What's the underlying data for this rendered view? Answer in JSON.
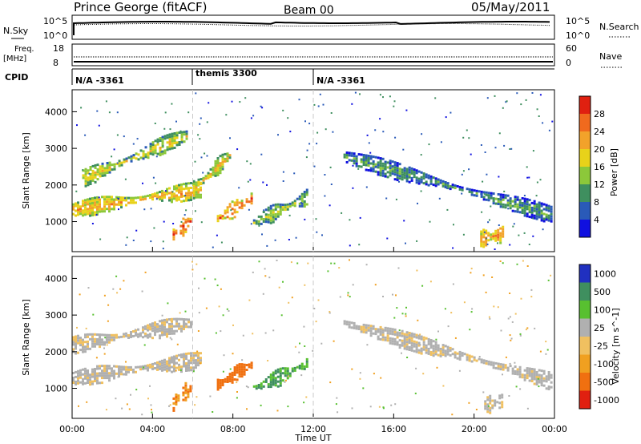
{
  "header": {
    "station": "Prince George (fitACF)",
    "beam": "Beam 00",
    "date": "05/May/2011"
  },
  "status_panel": {
    "nsky_label": "N.Sky",
    "nsearch_label": "N.Search",
    "count_ticks": [
      "10^5",
      "10^0"
    ],
    "freq_label_1": "Freq.",
    "freq_label_2": "[MHz]",
    "freq_ticks": [
      "18",
      "8"
    ],
    "nave_label": "Nave",
    "nave_ticks": [
      "60",
      "0"
    ],
    "cpid_label": "CPID",
    "cpid_segments": [
      {
        "label": "N/A -3361",
        "start_hour": 0,
        "end_hour": 6
      },
      {
        "label": "themis 3300",
        "start_hour": 6,
        "end_hour": 12
      },
      {
        "label": "N/A -3361",
        "start_hour": 12,
        "end_hour": 24
      }
    ]
  },
  "chart_data": [
    {
      "type": "heatmap",
      "title": "",
      "parameter": "Power",
      "xlabel": "",
      "ylabel": "Slant Range [km]",
      "xlim": [
        0,
        24
      ],
      "ylim": [
        180,
        4600
      ],
      "y_ticks": [
        "1000",
        "2000",
        "3000",
        "4000"
      ],
      "colorbar": {
        "label": "Power [dB]",
        "min": 0,
        "max": 32,
        "ticks": [
          "4",
          "8",
          "12",
          "16",
          "20",
          "24",
          "28"
        ],
        "colors": [
          "#1010e0",
          "#2a5ab8",
          "#3f8f5f",
          "#8cc83a",
          "#e8d21a",
          "#f2a22a",
          "#f06a1e",
          "#e02010"
        ]
      },
      "echo_bands": [
        {
          "start_hour": 0.0,
          "end_hour": 6.5,
          "range_start_km": 1350,
          "range_end_km": 1900,
          "power_db": 20
        },
        {
          "start_hour": 0.5,
          "end_hour": 5.8,
          "range_start_km": 2200,
          "range_end_km": 3400,
          "power_db": 16
        },
        {
          "start_hour": 6.0,
          "end_hour": 8.0,
          "range_start_km": 1900,
          "range_end_km": 2900,
          "power_db": 18
        },
        {
          "start_hour": 5.0,
          "end_hour": 6.0,
          "range_start_km": 650,
          "range_end_km": 1100,
          "power_db": 26
        },
        {
          "start_hour": 7.2,
          "end_hour": 9.0,
          "range_start_km": 1100,
          "range_end_km": 1700,
          "power_db": 24
        },
        {
          "start_hour": 9.0,
          "end_hour": 11.8,
          "range_start_km": 1000,
          "range_end_km": 1700,
          "power_db": 14
        },
        {
          "start_hour": 13.5,
          "end_hour": 24.0,
          "range_start_km": 2800,
          "range_end_km": 1200,
          "power_db": 10
        },
        {
          "start_hour": 20.3,
          "end_hour": 21.5,
          "range_start_km": 550,
          "range_end_km": 700,
          "power_db": 22
        }
      ]
    },
    {
      "type": "heatmap",
      "title": "",
      "parameter": "Velocity",
      "xlabel": "Time UT",
      "ylabel": "Slant Range [km]",
      "xlim": [
        0,
        24
      ],
      "ylim": [
        180,
        4600
      ],
      "x_ticks": [
        "00:00",
        "04:00",
        "08:00",
        "12:00",
        "16:00",
        "20:00",
        "00:00"
      ],
      "y_ticks": [
        "1000",
        "2000",
        "3000",
        "4000"
      ],
      "colorbar": {
        "label": "Velocity [m s^-1]",
        "ticks": [
          "1000",
          "500",
          "100",
          "25",
          "-25",
          "-100",
          "-500",
          "-1000"
        ],
        "colors": [
          "#2030c0",
          "#3f8f5f",
          "#58c030",
          "#b0b0b0",
          "#f0c060",
          "#f0a020",
          "#f07010",
          "#e02010"
        ]
      },
      "echo_bands": [
        {
          "start_hour": 0.0,
          "end_hour": 6.5,
          "range_start_km": 1300,
          "range_end_km": 1800,
          "velocity_mps": 0
        },
        {
          "start_hour": 0.0,
          "end_hour": 6.0,
          "range_start_km": 2200,
          "range_end_km": 2800,
          "velocity_mps": 0
        },
        {
          "start_hour": 5.0,
          "end_hour": 6.0,
          "range_start_km": 650,
          "range_end_km": 1100,
          "velocity_mps": -300
        },
        {
          "start_hour": 7.2,
          "end_hour": 9.0,
          "range_start_km": 1100,
          "range_end_km": 1700,
          "velocity_mps": -400
        },
        {
          "start_hour": 9.0,
          "end_hour": 11.8,
          "range_start_km": 1000,
          "range_end_km": 1700,
          "velocity_mps": 300
        },
        {
          "start_hour": 13.5,
          "end_hour": 24.0,
          "range_start_km": 2800,
          "range_end_km": 1200,
          "velocity_mps": 0
        },
        {
          "start_hour": 20.5,
          "end_hour": 21.5,
          "range_start_km": 550,
          "range_end_km": 700,
          "velocity_mps": 0
        }
      ]
    }
  ]
}
